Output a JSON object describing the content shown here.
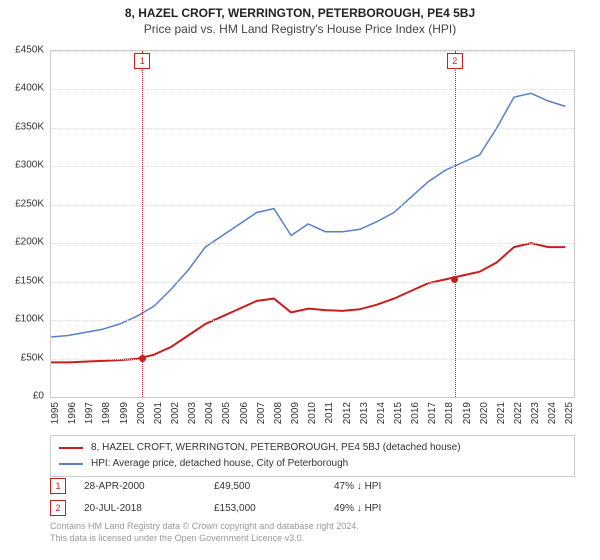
{
  "titles": {
    "main": "8, HAZEL CROFT, WERRINGTON, PETERBOROUGH, PE4 5BJ",
    "sub": "Price paid vs. HM Land Registry's House Price Index (HPI)"
  },
  "chart": {
    "type": "line",
    "background_color": "#ffffff",
    "grid_color": "#dddddd",
    "border_color": "#cccccc",
    "y": {
      "ticks": [
        0,
        50000,
        100000,
        150000,
        200000,
        250000,
        300000,
        350000,
        400000,
        450000
      ],
      "labels": [
        "£0",
        "£50K",
        "£100K",
        "£150K",
        "£200K",
        "£250K",
        "£300K",
        "£350K",
        "£400K",
        "£450K"
      ],
      "min": 0,
      "max": 450000
    },
    "x": {
      "ticks": [
        1995,
        1996,
        1997,
        1998,
        1999,
        2000,
        2001,
        2002,
        2003,
        2004,
        2005,
        2006,
        2007,
        2008,
        2009,
        2010,
        2011,
        2012,
        2013,
        2014,
        2015,
        2016,
        2017,
        2018,
        2019,
        2020,
        2021,
        2022,
        2023,
        2024,
        2025
      ],
      "min": 1995,
      "max": 2025.5
    },
    "series": [
      {
        "id": "property",
        "label": "8, HAZEL CROFT, WERRINGTON, PETERBOROUGH, PE4 5BJ (detached house)",
        "color": "#c81e1e",
        "width": 2,
        "data": [
          [
            1995,
            45000
          ],
          [
            1996,
            45000
          ],
          [
            1997,
            46000
          ],
          [
            1998,
            47000
          ],
          [
            1999,
            48000
          ],
          [
            2000,
            49500
          ],
          [
            2001,
            55000
          ],
          [
            2002,
            65000
          ],
          [
            2003,
            80000
          ],
          [
            2004,
            95000
          ],
          [
            2005,
            105000
          ],
          [
            2006,
            115000
          ],
          [
            2007,
            125000
          ],
          [
            2008,
            128000
          ],
          [
            2009,
            110000
          ],
          [
            2010,
            115000
          ],
          [
            2011,
            113000
          ],
          [
            2012,
            112000
          ],
          [
            2013,
            114000
          ],
          [
            2014,
            120000
          ],
          [
            2015,
            128000
          ],
          [
            2016,
            138000
          ],
          [
            2017,
            148000
          ],
          [
            2018,
            153000
          ],
          [
            2019,
            158000
          ],
          [
            2020,
            163000
          ],
          [
            2021,
            175000
          ],
          [
            2022,
            195000
          ],
          [
            2023,
            200000
          ],
          [
            2024,
            195000
          ],
          [
            2025,
            195000
          ]
        ]
      },
      {
        "id": "hpi",
        "label": "HPI: Average price, detached house, City of Peterborough",
        "color": "#5b7fc7",
        "width": 1.5,
        "data": [
          [
            1995,
            78000
          ],
          [
            1996,
            80000
          ],
          [
            1997,
            84000
          ],
          [
            1998,
            88000
          ],
          [
            1999,
            95000
          ],
          [
            2000,
            105000
          ],
          [
            2001,
            118000
          ],
          [
            2002,
            140000
          ],
          [
            2003,
            165000
          ],
          [
            2004,
            195000
          ],
          [
            2005,
            210000
          ],
          [
            2006,
            225000
          ],
          [
            2007,
            240000
          ],
          [
            2008,
            245000
          ],
          [
            2009,
            210000
          ],
          [
            2010,
            225000
          ],
          [
            2011,
            215000
          ],
          [
            2012,
            215000
          ],
          [
            2013,
            218000
          ],
          [
            2014,
            228000
          ],
          [
            2015,
            240000
          ],
          [
            2016,
            260000
          ],
          [
            2017,
            280000
          ],
          [
            2018,
            295000
          ],
          [
            2019,
            305000
          ],
          [
            2020,
            315000
          ],
          [
            2021,
            350000
          ],
          [
            2022,
            390000
          ],
          [
            2023,
            395000
          ],
          [
            2024,
            385000
          ],
          [
            2025,
            378000
          ]
        ]
      }
    ],
    "markers": [
      {
        "n": "1",
        "year": 2000.32,
        "value": 49500,
        "color": "#c81e1e"
      },
      {
        "n": "2",
        "year": 2018.55,
        "value": 153000,
        "color": "#c81e1e"
      }
    ]
  },
  "legend": {
    "border_color": "#cccccc"
  },
  "transactions": [
    {
      "n": "1",
      "date": "28-APR-2000",
      "price": "£49,500",
      "pct": "47% ↓ HPI",
      "color": "#c81e1e"
    },
    {
      "n": "2",
      "date": "20-JUL-2018",
      "price": "£153,000",
      "pct": "49% ↓ HPI",
      "color": "#c81e1e"
    }
  ],
  "footer": {
    "line1": "Contains HM Land Registry data © Crown copyright and database right 2024.",
    "line2": "This data is licensed under the Open Government Licence v3.0."
  }
}
